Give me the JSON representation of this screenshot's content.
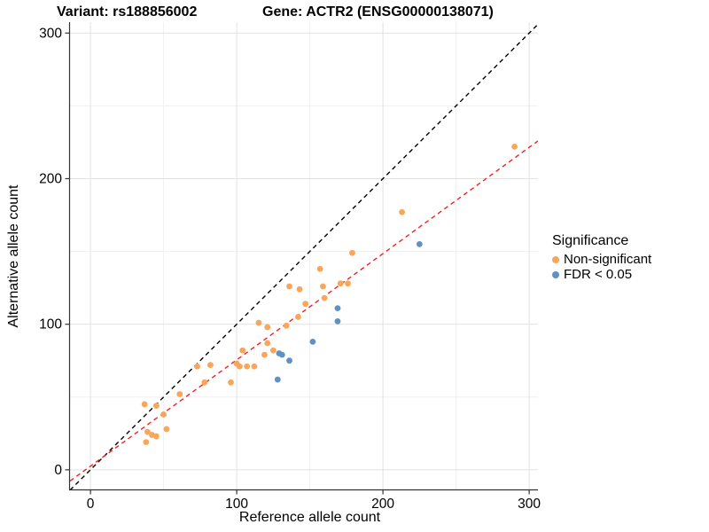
{
  "titles": {
    "variant": "Variant: rs188856002",
    "gene": "Gene: ACTR2 (ENSG00000138071)"
  },
  "chart_data": {
    "type": "scatter",
    "xlabel": "Reference allele count",
    "ylabel": "Alternative allele count",
    "xlim": [
      -14,
      306
    ],
    "ylim": [
      -13.5,
      307.5
    ],
    "xticks": [
      0,
      100,
      200,
      300
    ],
    "yticks": [
      0,
      100,
      200,
      300
    ],
    "xminor": [
      50,
      150,
      250
    ],
    "yminor": [
      50,
      150,
      250
    ],
    "grid": true,
    "legend": {
      "title": "Significance",
      "position": "right"
    },
    "series": [
      {
        "name": "Non-significant",
        "color": "#F9A65A",
        "points": [
          [
            37,
            45
          ],
          [
            45,
            44
          ],
          [
            50,
            38
          ],
          [
            61,
            52
          ],
          [
            52,
            28
          ],
          [
            39,
            26
          ],
          [
            42,
            24
          ],
          [
            45,
            23
          ],
          [
            38,
            19
          ],
          [
            73,
            71
          ],
          [
            82,
            72
          ],
          [
            78,
            60
          ],
          [
            96,
            60
          ],
          [
            100,
            73
          ],
          [
            102,
            71
          ],
          [
            107,
            71
          ],
          [
            112,
            71
          ],
          [
            104,
            82
          ],
          [
            119,
            79
          ],
          [
            125,
            82
          ],
          [
            121,
            87
          ],
          [
            115,
            101
          ],
          [
            121,
            98
          ],
          [
            134,
            99
          ],
          [
            142,
            105
          ],
          [
            147,
            114
          ],
          [
            160,
            118
          ],
          [
            136,
            126
          ],
          [
            143,
            124
          ],
          [
            159,
            126
          ],
          [
            171,
            128
          ],
          [
            176,
            128
          ],
          [
            157,
            138
          ],
          [
            179,
            149
          ],
          [
            213,
            177
          ],
          [
            290,
            222
          ]
        ]
      },
      {
        "name": "FDR < 0.05",
        "color": "#6191C4",
        "points": [
          [
            129,
            80
          ],
          [
            131,
            79
          ],
          [
            136,
            75
          ],
          [
            128,
            62
          ],
          [
            152,
            88
          ],
          [
            169,
            111
          ],
          [
            169,
            102
          ],
          [
            225,
            155
          ]
        ]
      }
    ],
    "lines": [
      {
        "name": "identity-line",
        "color": "#000000",
        "dashed": true,
        "slope": 1,
        "intercept": 0
      },
      {
        "name": "fit-line",
        "color": "#EE2222",
        "dashed": true,
        "slope": 0.73,
        "intercept": 2.5
      }
    ],
    "style": {
      "grid_major_color": "#E2E2E2",
      "grid_minor_color": "#F0F0F0",
      "axis_color": "#333333",
      "tick_label_color": "#000000"
    }
  }
}
